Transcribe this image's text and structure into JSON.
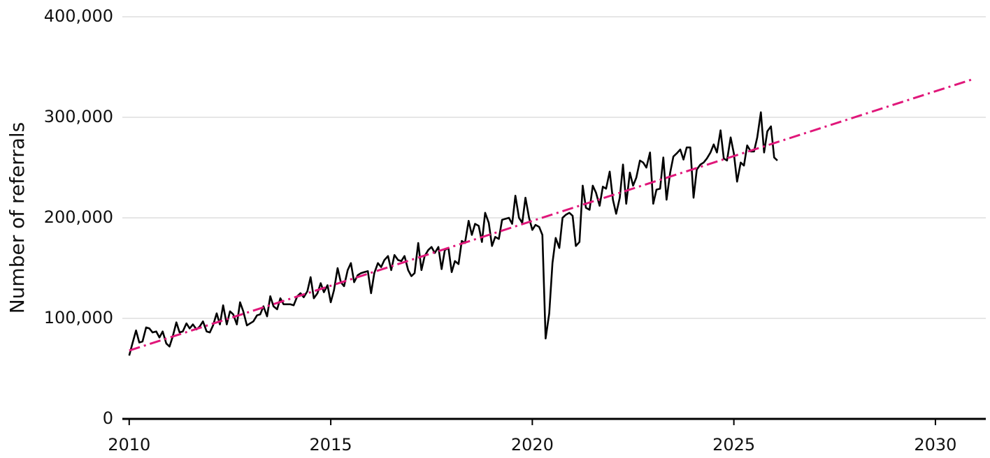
{
  "chart_data": {
    "type": "line",
    "y_label": "Number of referrals",
    "xlim": [
      2009.83,
      2031.25
    ],
    "xticks": [
      2010,
      2015,
      2020,
      2025,
      2030
    ],
    "ylim": [
      0,
      400000
    ],
    "yticks": [
      {
        "value": 0,
        "label": "0"
      },
      {
        "value": 100000,
        "label": "100,000"
      },
      {
        "value": 200000,
        "label": "200,000"
      },
      {
        "value": 300000,
        "label": "300,000"
      },
      {
        "value": 400000,
        "label": "400,000"
      }
    ],
    "grid": true,
    "series": [
      {
        "color": "#000000",
        "style": "solid",
        "x": [
          2010,
          2010.08,
          2010.17,
          2010.25,
          2010.33,
          2010.42,
          2010.5,
          2010.58,
          2010.67,
          2010.75,
          2010.83,
          2010.92,
          2011,
          2011.08,
          2011.17,
          2011.25,
          2011.33,
          2011.42,
          2011.5,
          2011.58,
          2011.67,
          2011.75,
          2011.83,
          2011.92,
          2012,
          2012.08,
          2012.17,
          2012.25,
          2012.33,
          2012.42,
          2012.5,
          2012.58,
          2012.67,
          2012.75,
          2012.83,
          2012.92,
          2013,
          2013.08,
          2013.17,
          2013.25,
          2013.33,
          2013.42,
          2013.5,
          2013.58,
          2013.67,
          2013.75,
          2013.83,
          2013.92,
          2014,
          2014.08,
          2014.17,
          2014.25,
          2014.33,
          2014.42,
          2014.5,
          2014.58,
          2014.67,
          2014.75,
          2014.83,
          2014.92,
          2015,
          2015.08,
          2015.17,
          2015.25,
          2015.33,
          2015.42,
          2015.5,
          2015.58,
          2015.67,
          2015.75,
          2015.83,
          2015.92,
          2016,
          2016.08,
          2016.17,
          2016.25,
          2016.33,
          2016.42,
          2016.5,
          2016.58,
          2016.67,
          2016.75,
          2016.83,
          2016.92,
          2017,
          2017.08,
          2017.17,
          2017.25,
          2017.33,
          2017.42,
          2017.5,
          2017.58,
          2017.67,
          2017.75,
          2017.83,
          2017.92,
          2018,
          2018.08,
          2018.17,
          2018.25,
          2018.33,
          2018.42,
          2018.5,
          2018.58,
          2018.67,
          2018.75,
          2018.83,
          2018.92,
          2019,
          2019.08,
          2019.17,
          2019.25,
          2019.33,
          2019.42,
          2019.5,
          2019.58,
          2019.67,
          2019.75,
          2019.83,
          2019.92,
          2020,
          2020.08,
          2020.17,
          2020.25,
          2020.33,
          2020.42,
          2020.5,
          2020.58,
          2020.67,
          2020.75,
          2020.83,
          2020.92,
          2021,
          2021.08,
          2021.17,
          2021.25,
          2021.33,
          2021.42,
          2021.5,
          2021.58,
          2021.67,
          2021.75,
          2021.83,
          2021.92,
          2022,
          2022.08,
          2022.17,
          2022.25,
          2022.33,
          2022.42,
          2022.5,
          2022.58,
          2022.67,
          2022.75,
          2022.83,
          2022.92,
          2023,
          2023.08,
          2023.17,
          2023.25,
          2023.33,
          2023.42,
          2023.5,
          2023.58,
          2023.67,
          2023.75,
          2023.83,
          2023.92,
          2024,
          2024.08,
          2024.17,
          2024.25,
          2024.33,
          2024.42,
          2024.5,
          2024.58,
          2024.67,
          2024.75,
          2024.83,
          2024.92,
          2025,
          2025.08,
          2025.17,
          2025.25,
          2025.33,
          2025.42,
          2025.5,
          2025.58,
          2025.67,
          2025.75,
          2025.83,
          2025.92,
          2026,
          2026.08
        ],
        "values": [
          63000,
          75000,
          88000,
          76000,
          77000,
          91000,
          90000,
          86000,
          87000,
          81000,
          87000,
          75000,
          72000,
          82000,
          96000,
          86000,
          87000,
          95000,
          90000,
          94000,
          89000,
          92000,
          97000,
          87000,
          86000,
          93000,
          105000,
          94000,
          113000,
          94000,
          107000,
          104000,
          94000,
          116000,
          107000,
          93000,
          95000,
          97000,
          103000,
          104000,
          112000,
          102000,
          122000,
          112000,
          109000,
          120000,
          114000,
          114000,
          114000,
          113000,
          122000,
          125000,
          121000,
          127000,
          141000,
          120000,
          125000,
          135000,
          126000,
          133000,
          116000,
          128000,
          150000,
          136000,
          132000,
          148000,
          155000,
          136000,
          143000,
          145000,
          146000,
          147000,
          125000,
          145000,
          155000,
          151000,
          158000,
          162000,
          148000,
          163000,
          158000,
          157000,
          162000,
          148000,
          142000,
          145000,
          175000,
          148000,
          162000,
          168000,
          171000,
          165000,
          171000,
          149000,
          168000,
          170000,
          146000,
          157000,
          154000,
          177000,
          175000,
          197000,
          183000,
          194000,
          192000,
          176000,
          205000,
          195000,
          172000,
          181000,
          179000,
          198000,
          199000,
          200000,
          194000,
          222000,
          200000,
          195000,
          220000,
          200000,
          188000,
          193000,
          191000,
          183000,
          80000,
          105000,
          155000,
          180000,
          170000,
          200000,
          203000,
          205000,
          202000,
          172000,
          176000,
          232000,
          210000,
          208000,
          232000,
          225000,
          212000,
          231000,
          229000,
          246000,
          218000,
          204000,
          220000,
          253000,
          214000,
          245000,
          232000,
          240000,
          257000,
          255000,
          250000,
          265000,
          214000,
          228000,
          229000,
          260000,
          218000,
          245000,
          261000,
          264000,
          268000,
          258000,
          270000,
          270000,
          220000,
          248000,
          253000,
          255000,
          259000,
          265000,
          273000,
          265000,
          287000,
          259000,
          257000,
          280000,
          264000,
          236000,
          255000,
          252000,
          272000,
          266000,
          266000,
          280000,
          305000,
          265000,
          286000,
          291000,
          260000,
          257000
        ]
      },
      {
        "color": "#e0177a",
        "style": "dashdot",
        "x": [
          2010,
          2030.94
        ],
        "values": [
          68000,
          338000
        ]
      }
    ]
  }
}
